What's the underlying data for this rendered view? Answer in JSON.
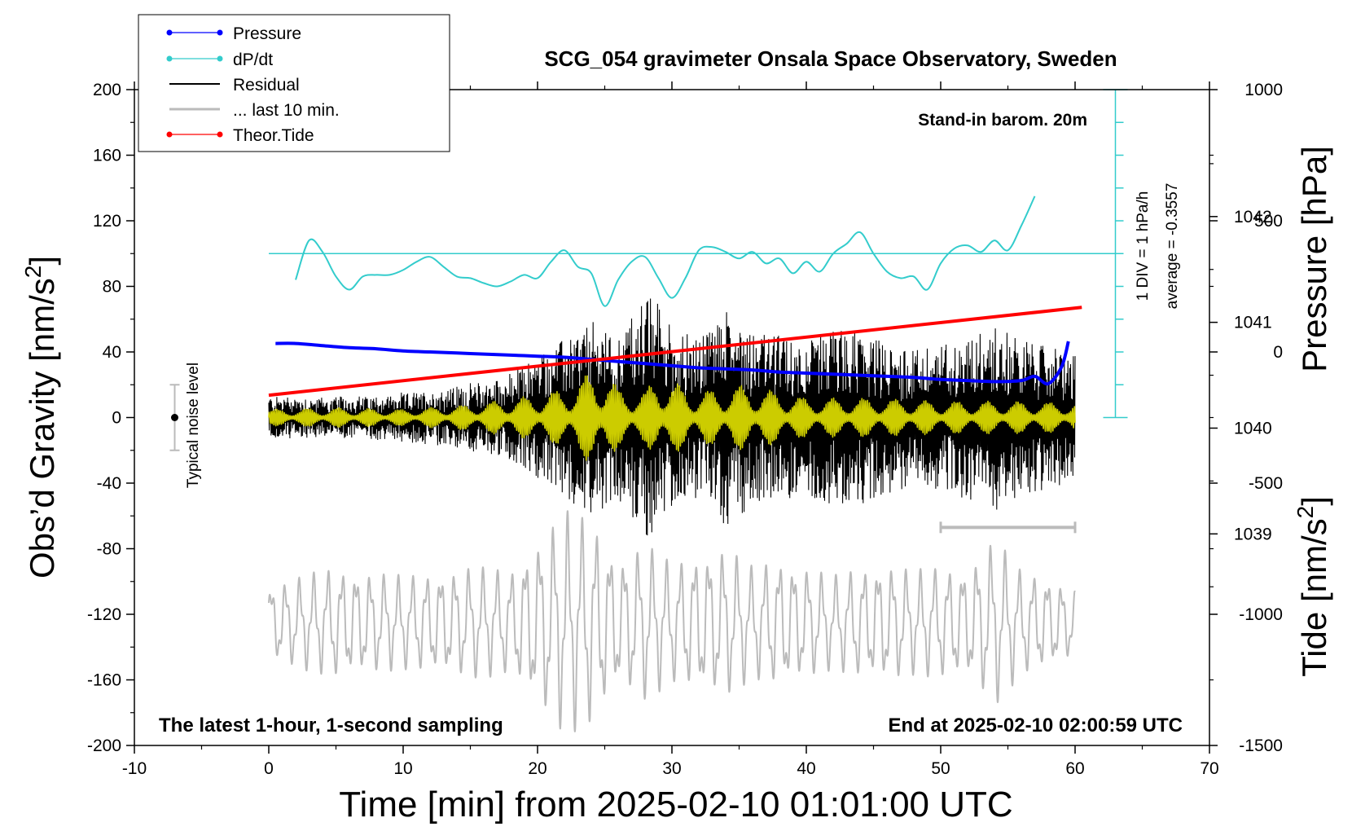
{
  "chart_data": {
    "type": "line",
    "title": "SCG_054 gravimeter Onsala Space Observatory, Sweden",
    "xlabel": "Time [min] from 2025-02-10 01:01:00 UTC",
    "ylabel_left_main": "Obs’d Gravity [nm/s",
    "ylabel_left_sup": "2",
    "ylabel_left_close": "]",
    "ylabel_right_pressure": "Pressure [hPa]",
    "ylabel_right_tide_main": "Tide [nm/s",
    "ylabel_right_tide_sup": "2",
    "ylabel_right_tide_close": "]",
    "xlim": [
      -10,
      70
    ],
    "ylim_left": [
      -200,
      200
    ],
    "ylim_pressure": [
      1037.0,
      1043.2
    ],
    "ylim_tide": [
      -1500,
      1000
    ],
    "x_ticks": [
      "-10",
      "0",
      "10",
      "20",
      "30",
      "40",
      "50",
      "60",
      "70"
    ],
    "x_tick_values": [
      -10,
      0,
      10,
      20,
      30,
      40,
      50,
      60,
      70
    ],
    "y_left_ticks": [
      "200",
      "160",
      "120",
      "80",
      "40",
      "0",
      "-40",
      "-80",
      "-120",
      "-160",
      "-200"
    ],
    "y_left_tick_values": [
      200,
      160,
      120,
      80,
      40,
      0,
      -40,
      -80,
      -120,
      -160,
      -200
    ],
    "y_pressure_ticks": [
      "1042",
      "1041",
      "1040",
      "1039"
    ],
    "y_pressure_tick_values": [
      1042,
      1041,
      1040,
      1039
    ],
    "y_tide_ticks": [
      "1000",
      "500",
      "0",
      "-500",
      "-1000",
      "-1500"
    ],
    "y_tide_tick_values": [
      1000,
      500,
      0,
      -500,
      -1000,
      -1500
    ],
    "legend": {
      "position": "top-left",
      "entries": [
        {
          "label": "Pressure",
          "color": "#0000ff"
        },
        {
          "label": "dP/dt",
          "color": "#33cccc"
        },
        {
          "label": "Residual",
          "color": "#000000"
        },
        {
          "label": "... last 10 min.",
          "color": "#bbbbbb"
        },
        {
          "label": "Theor.Tide",
          "color": "#ff0000"
        }
      ]
    },
    "annotations": {
      "stand_in": "Stand-in barom. 20m",
      "div_label": "1 DIV = 1 hPa/h",
      "average_label": "average = -0.3557",
      "noise_label": "Typical noise level",
      "latest": "The latest 1-hour, 1-second sampling",
      "end_at": "End at 2025-02-10 02:00:59 UTC"
    },
    "series": [
      {
        "name": "Pressure",
        "axis": "pressure",
        "color": "#0000ff",
        "x": [
          0.5,
          2,
          4,
          6,
          8,
          10,
          12,
          14,
          16,
          18,
          20,
          22,
          24,
          26,
          28,
          30,
          32,
          34,
          36,
          38,
          40,
          42,
          44,
          46,
          48,
          50,
          52,
          54,
          56,
          57,
          58,
          59,
          59.5
        ],
        "values": [
          1040.8,
          1040.8,
          1040.78,
          1040.76,
          1040.75,
          1040.73,
          1040.72,
          1040.71,
          1040.7,
          1040.69,
          1040.68,
          1040.67,
          1040.65,
          1040.63,
          1040.61,
          1040.59,
          1040.57,
          1040.56,
          1040.55,
          1040.53,
          1040.52,
          1040.51,
          1040.5,
          1040.49,
          1040.48,
          1040.46,
          1040.45,
          1040.44,
          1040.45,
          1040.49,
          1040.42,
          1040.58,
          1040.82
        ]
      },
      {
        "name": "dP/dt",
        "axis": "left",
        "color": "#33cccc",
        "x": [
          2,
          3,
          4,
          5,
          6,
          7,
          8,
          9,
          10,
          11,
          12,
          13,
          14,
          15,
          16,
          17,
          18,
          19,
          20,
          21,
          22,
          23,
          24,
          25,
          26,
          27,
          28,
          29,
          30,
          31,
          32,
          33,
          34,
          35,
          36,
          37,
          38,
          39,
          40,
          41,
          42,
          43,
          44,
          45,
          46,
          47,
          48,
          49,
          50,
          51,
          52,
          53,
          54,
          55,
          56,
          57
        ],
        "values": [
          84,
          108,
          101,
          86,
          78,
          86,
          87,
          87,
          90,
          95,
          98,
          92,
          86,
          85,
          82,
          80,
          83,
          87,
          85,
          95,
          102,
          92,
          88,
          68,
          84,
          95,
          98,
          85,
          73,
          85,
          102,
          104,
          101,
          97,
          101,
          94,
          97,
          88,
          95,
          89,
          100,
          106,
          113,
          100,
          89,
          85,
          86,
          78,
          94,
          103,
          105,
          101,
          108,
          102,
          117,
          135
        ]
      },
      {
        "name": "Residual",
        "axis": "left",
        "color": "#000000",
        "x_range": [
          0,
          60
        ],
        "envelope": {
          "x": [
            0,
            5,
            10,
            15,
            18,
            20,
            22,
            24,
            26,
            28,
            29,
            30,
            32,
            34,
            36,
            38,
            40,
            42,
            44,
            46,
            48,
            50,
            52,
            54,
            56,
            58,
            60
          ],
          "amp": [
            13,
            12,
            14,
            20,
            26,
            38,
            48,
            58,
            50,
            75,
            72,
            55,
            48,
            68,
            55,
            50,
            46,
            55,
            52,
            45,
            42,
            44,
            50,
            56,
            48,
            44,
            38
          ]
        }
      },
      {
        "name": "Residual (filtered)",
        "axis": "left",
        "color": "#cccc00",
        "x_range": [
          0,
          60
        ],
        "envelope": {
          "x": [
            0,
            5,
            10,
            15,
            20,
            22,
            24,
            25,
            26,
            28,
            29,
            30,
            32,
            35,
            38,
            40,
            45,
            50,
            55,
            60
          ],
          "amp": [
            5,
            6,
            5,
            8,
            14,
            18,
            28,
            30,
            18,
            16,
            28,
            22,
            16,
            20,
            16,
            12,
            12,
            10,
            10,
            9
          ]
        }
      },
      {
        "name": "... last 10 min.",
        "axis": "left",
        "color": "#bbbbbb",
        "x_range": [
          0,
          60
        ],
        "offset": -125,
        "envelope": {
          "x": [
            0,
            5,
            10,
            15,
            18,
            20,
            22,
            24,
            26,
            28,
            30,
            32,
            34,
            36,
            38,
            40,
            42,
            44,
            46,
            48,
            50,
            52,
            54,
            56,
            58,
            60
          ],
          "amp": [
            20,
            30,
            25,
            30,
            28,
            45,
            60,
            55,
            35,
            42,
            32,
            38,
            40,
            30,
            35,
            30,
            25,
            30,
            32,
            28,
            30,
            30,
            45,
            28,
            25,
            18
          ]
        }
      },
      {
        "name": "Theor.Tide",
        "axis": "tide",
        "color": "#ff0000",
        "x": [
          0,
          60.5
        ],
        "values": [
          -165,
          170
        ]
      }
    ],
    "noise_bar": {
      "x": -7,
      "center": 0,
      "low": -20,
      "high": 20
    },
    "last10_bar": {
      "x_start": 50,
      "x_end": 60,
      "y": -67
    },
    "dpdt_zero_line": {
      "value": 100,
      "x_start": 0,
      "x_end": 63
    },
    "dpdt_scale": {
      "x": 63,
      "top": 200,
      "bottom": 0,
      "div": 20
    }
  }
}
